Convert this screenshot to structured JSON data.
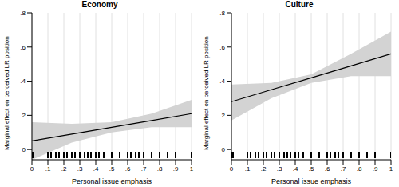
{
  "chart_data": [
    {
      "type": "line",
      "title": "Economy",
      "x_label": "Personal issue emphasis",
      "y_label": "Marginal effect on perceived LR position",
      "x": [
        0,
        0.25,
        0.5,
        0.75,
        1
      ],
      "values": [
        0.05,
        0.09,
        0.13,
        0.17,
        0.21
      ],
      "lower": [
        -0.06,
        0.04,
        0.1,
        0.13,
        0.13
      ],
      "upper": [
        0.16,
        0.15,
        0.16,
        0.21,
        0.29
      ],
      "rug": [
        0,
        0.01,
        0.1,
        0.12,
        0.15,
        0.17,
        0.2,
        0.22,
        0.25,
        0.27,
        0.3,
        0.33,
        0.35,
        0.37,
        0.4,
        0.42,
        0.45,
        0.5,
        0.55,
        0.6,
        0.62,
        0.65,
        0.67,
        0.7,
        0.75,
        0.8,
        0.85,
        0.9,
        1
      ],
      "color": "#000000",
      "xlim": [
        0,
        1
      ],
      "xticks": [
        0,
        {
          "value": 0.1,
          "label": ".1"
        },
        {
          "value": 0.2,
          "label": ".2"
        },
        {
          "value": 0.3,
          "label": ".3"
        },
        {
          "value": 0.4,
          "label": ".4"
        },
        {
          "value": 0.5,
          "label": ".5"
        },
        {
          "value": 0.6,
          "label": ".6"
        },
        {
          "value": 0.7,
          "label": ".7"
        },
        {
          "value": 0.8,
          "label": ".8"
        },
        {
          "value": 0.9,
          "label": ".9"
        },
        1
      ],
      "ylim": [
        -0.06,
        0.8
      ],
      "yticks": [
        0,
        {
          "value": 0.2,
          "label": ".2"
        },
        {
          "value": 0.4,
          "label": ".4"
        },
        {
          "value": 0.6,
          "label": ".6"
        },
        {
          "value": 0.8,
          "label": ".8"
        }
      ],
      "grid": true
    },
    {
      "type": "line",
      "title": "Culture",
      "x_label": "Personal issue emphasis",
      "y_label": "Marginal effect on perceived LR position",
      "x": [
        0,
        0.25,
        0.5,
        0.75,
        1
      ],
      "values": [
        0.28,
        0.35,
        0.42,
        0.49,
        0.56
      ],
      "lower": [
        0.17,
        0.3,
        0.39,
        0.43,
        0.43
      ],
      "upper": [
        0.38,
        0.39,
        0.44,
        0.56,
        0.69
      ],
      "rug": [
        0,
        0.01,
        0.1,
        0.12,
        0.15,
        0.17,
        0.2,
        0.22,
        0.25,
        0.27,
        0.3,
        0.33,
        0.35,
        0.37,
        0.4,
        0.42,
        0.45,
        0.5,
        0.55,
        0.6,
        0.62,
        0.65,
        0.67,
        0.7,
        0.75,
        0.8,
        0.85,
        0.9,
        1
      ],
      "color": "#000000",
      "xlim": [
        0,
        1
      ],
      "xticks": [
        0,
        {
          "value": 0.1,
          "label": ".1"
        },
        {
          "value": 0.2,
          "label": ".2"
        },
        {
          "value": 0.3,
          "label": ".3"
        },
        {
          "value": 0.4,
          "label": ".4"
        },
        {
          "value": 0.5,
          "label": ".5"
        },
        {
          "value": 0.6,
          "label": ".6"
        },
        {
          "value": 0.7,
          "label": ".7"
        },
        {
          "value": 0.8,
          "label": ".8"
        },
        {
          "value": 0.9,
          "label": ".9"
        },
        1
      ],
      "ylim": [
        -0.06,
        0.8
      ],
      "yticks": [
        0,
        {
          "value": 0.2,
          "label": ".2"
        },
        {
          "value": 0.4,
          "label": ".4"
        },
        {
          "value": 0.6,
          "label": ".6"
        },
        {
          "value": 0.8,
          "label": ".8"
        }
      ],
      "grid": true
    }
  ]
}
